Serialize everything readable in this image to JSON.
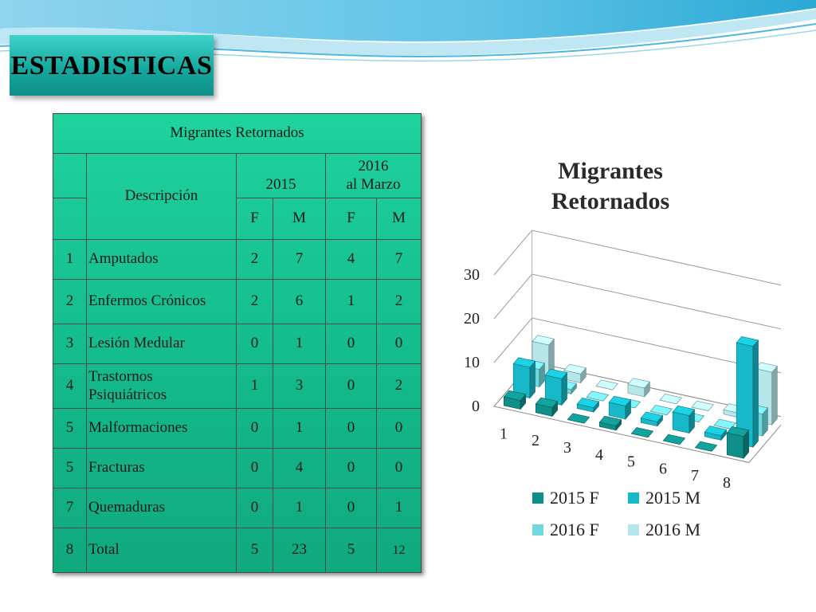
{
  "slide": {
    "title": "ESTADISTICAS"
  },
  "table": {
    "caption": "Migrantes Retornados",
    "desc_header": "Descripción",
    "year1": "2015",
    "year2": "2016",
    "year2_note": "al Marzo",
    "sub_headers": [
      "F",
      "M",
      "F",
      "M"
    ],
    "rows": [
      {
        "num": "1",
        "desc": "Amputados",
        "vals": [
          "2",
          "7",
          "4",
          "7"
        ]
      },
      {
        "num": "2",
        "desc": "Enfermos Crónicos",
        "vals": [
          "2",
          "6",
          "1",
          "2"
        ]
      },
      {
        "num": "3",
        "desc": "Lesión Medular",
        "vals": [
          "0",
          "1",
          "0",
          "0"
        ]
      },
      {
        "num": "4",
        "desc": "Trastornos Psiquiátricos",
        "vals": [
          "1",
          "3",
          "0",
          "2"
        ]
      },
      {
        "num": "5",
        "desc": "Malformaciones",
        "vals": [
          "0",
          "1",
          "0",
          "0"
        ]
      },
      {
        "num": "5",
        "desc": "Fracturas",
        "vals": [
          "0",
          "4",
          "0",
          "0"
        ]
      },
      {
        "num": "7",
        "desc": "Quemaduras",
        "vals": [
          "0",
          "1",
          "0",
          "1"
        ]
      },
      {
        "num": "8",
        "desc": "Total",
        "vals": [
          "5",
          "23",
          "5",
          "12"
        ]
      }
    ]
  },
  "chart_data": {
    "type": "bar",
    "style": "3d-column",
    "title": "Migrantes Retornados",
    "categories": [
      "1",
      "2",
      "3",
      "4",
      "5",
      "6",
      "7",
      "8"
    ],
    "y_ticks": [
      "0",
      "10",
      "20",
      "30"
    ],
    "ylim": [
      0,
      30
    ],
    "grid": true,
    "legend_position": "bottom",
    "series": [
      {
        "name": "2015 F",
        "values": [
          2,
          2,
          0,
          1,
          0,
          0,
          0,
          5
        ],
        "color": "#0f8f8a"
      },
      {
        "name": "2015 M",
        "values": [
          7,
          6,
          1,
          3,
          1,
          4,
          1,
          23
        ],
        "color": "#17b8c8"
      },
      {
        "name": "2016 F",
        "values": [
          4,
          1,
          0,
          0,
          0,
          0,
          0,
          5
        ],
        "color": "#6fd8dc"
      },
      {
        "name": "2016 M",
        "values": [
          7,
          2,
          0,
          2,
          0,
          0,
          1,
          12
        ],
        "color": "#b5e6ea"
      }
    ]
  }
}
